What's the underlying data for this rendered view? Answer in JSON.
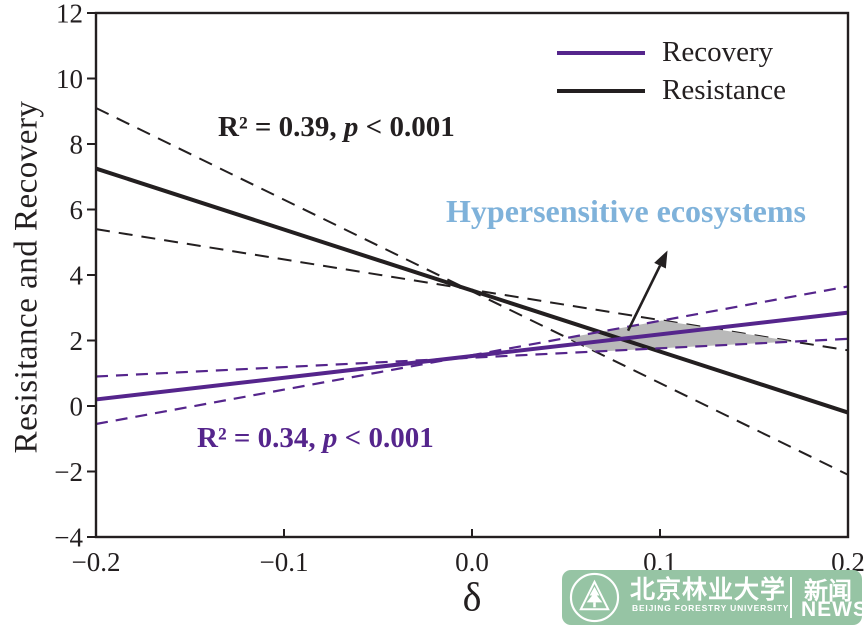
{
  "chart_data": {
    "type": "line",
    "title": "",
    "xlabel": "δ",
    "ylabel": "Resisitance and Recovery",
    "xlim": [
      -0.2,
      0.2
    ],
    "ylim": [
      -4,
      12
    ],
    "grid": false,
    "x_ticks": [
      {
        "v": -0.2,
        "label": "−0.2"
      },
      {
        "v": -0.1,
        "label": "−0.1"
      },
      {
        "v": 0.0,
        "label": "0.0"
      },
      {
        "v": 0.1,
        "label": "0.1"
      },
      {
        "v": 0.2,
        "label": "0.2"
      }
    ],
    "y_ticks": [
      {
        "v": 12,
        "label": "12"
      },
      {
        "v": 10,
        "label": "10"
      },
      {
        "v": 8,
        "label": "8"
      },
      {
        "v": 6,
        "label": "6"
      },
      {
        "v": 4,
        "label": "4"
      },
      {
        "v": 2,
        "label": "2"
      },
      {
        "v": 0,
        "label": "0"
      },
      {
        "v": -2,
        "label": "−2"
      },
      {
        "v": -4,
        "label": "−4"
      }
    ],
    "series": [
      {
        "name": "resistance-ci-steep",
        "role": "confidence-bound",
        "color": "#231f20",
        "dash": "14 9",
        "width": 2,
        "layer": 0,
        "points": [
          [
            -0.2,
            9.1
          ],
          [
            0.2,
            -2.1
          ]
        ]
      },
      {
        "name": "resistance-ci-shallow",
        "role": "confidence-bound",
        "color": "#231f20",
        "dash": "14 9",
        "width": 2,
        "layer": 0,
        "points": [
          [
            -0.2,
            5.4
          ],
          [
            0.2,
            1.7
          ]
        ]
      },
      {
        "name": "resistance-fit",
        "label": "Resistance",
        "role": "regression",
        "color": "#231f20",
        "dash": null,
        "width": 4,
        "layer": 2,
        "points": [
          [
            -0.2,
            7.25
          ],
          [
            0.2,
            -0.2
          ]
        ],
        "r2": 0.39,
        "p": "< 0.001"
      },
      {
        "name": "recovery-ci-steep",
        "role": "confidence-bound",
        "color": "#55258c",
        "dash": "12 8",
        "width": 2.2,
        "layer": 2,
        "points": [
          [
            -0.2,
            -0.55
          ],
          [
            0.2,
            3.65
          ]
        ]
      },
      {
        "name": "recovery-ci-shallow",
        "role": "confidence-bound",
        "color": "#55258c",
        "dash": "12 8",
        "width": 2.2,
        "layer": 2,
        "points": [
          [
            -0.2,
            0.9
          ],
          [
            0.2,
            2.05
          ]
        ]
      },
      {
        "name": "recovery-fit",
        "label": "Recovery",
        "role": "regression",
        "color": "#55258c",
        "dash": null,
        "width": 4,
        "layer": 3,
        "points": [
          [
            -0.2,
            0.2
          ],
          [
            0.2,
            2.85
          ]
        ],
        "r2": 0.34,
        "p": "< 0.001"
      }
    ],
    "overlap_region": {
      "name": "hypersensitive-overlap-area",
      "color": "#b9b9b9",
      "layer": 1,
      "points": [
        [
          0.051,
          2.08
        ],
        [
          0.101,
          2.61
        ],
        [
          0.171,
          1.97
        ],
        [
          0.066,
          1.66
        ]
      ]
    },
    "arrow": {
      "from": [
        0.083,
        2.3
      ],
      "to": [
        0.104,
        4.75
      ],
      "color": "#231f20"
    },
    "stats": {
      "resistance": {
        "prefix": "R² = 0.39, ",
        "p": "p",
        "suffix": " < 0.001",
        "color": "#231f20"
      },
      "recovery": {
        "prefix": "R² = 0.34, ",
        "p": "p",
        "suffix": " < 0.001",
        "color": "#55258c"
      }
    },
    "annotation": {
      "text": "Hypersensitive ecosystems",
      "color": "#7fb2da"
    },
    "legend": {
      "position": "top-right",
      "entries": [
        {
          "label": "Recovery",
          "color": "#55258c"
        },
        {
          "label": "Resistance",
          "color": "#231f20"
        }
      ]
    },
    "axis_color": "#231f20"
  },
  "logo": {
    "bg_color": "#96c4a4",
    "text_color": "#ffffff",
    "university_cn": "北京林业大学",
    "university_en": "BEIJING FORESTRY UNIVERSITY",
    "news_cn": "新闻",
    "news_en": "NEWS"
  }
}
